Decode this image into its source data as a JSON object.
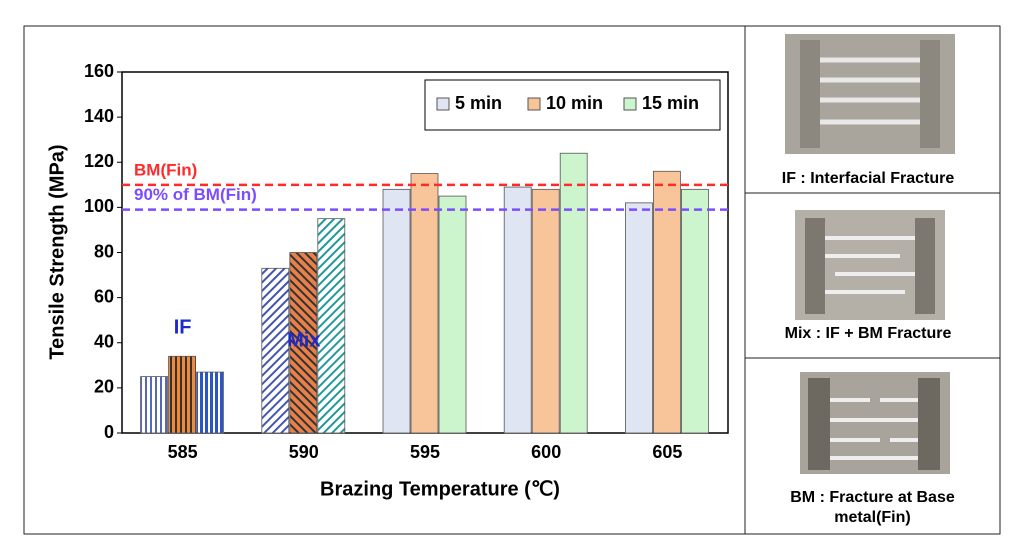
{
  "chart_data": {
    "type": "bar",
    "categories": [
      "585",
      "590",
      "595",
      "600",
      "605"
    ],
    "series": [
      {
        "name": "5 min",
        "color": "#dfe5f2",
        "values": [
          25,
          73,
          108,
          109,
          102
        ]
      },
      {
        "name": "10 min",
        "color": "#f8c59a",
        "values": [
          34,
          80,
          115,
          108,
          116
        ]
      },
      {
        "name": "15 min",
        "color": "#cdf5cd",
        "values": [
          27,
          95,
          105,
          124,
          108
        ]
      }
    ],
    "hatch": [
      "vertical",
      "diagonal",
      null,
      null,
      null
    ],
    "ylim": [
      0,
      160
    ],
    "yticks": [
      0,
      20,
      40,
      60,
      80,
      100,
      120,
      140,
      160
    ],
    "xlabel": "Brazing Temperature (℃)",
    "ylabel": "Tensile Strength (MPa)",
    "reference_lines": [
      {
        "label": "BM(Fin)",
        "value": 110,
        "color": "#ff2a2a"
      },
      {
        "label": "90% of BM(Fin)",
        "value": 99,
        "color": "#7b4dff"
      }
    ],
    "annotations": [
      "IF",
      "Mix"
    ],
    "legend": "top-right"
  },
  "panels": [
    {
      "caption": "IF : Interfacial Fracture"
    },
    {
      "caption": "Mix : IF + BM Fracture"
    },
    {
      "caption": "BM : Fracture at Base metal(Fin)"
    }
  ]
}
